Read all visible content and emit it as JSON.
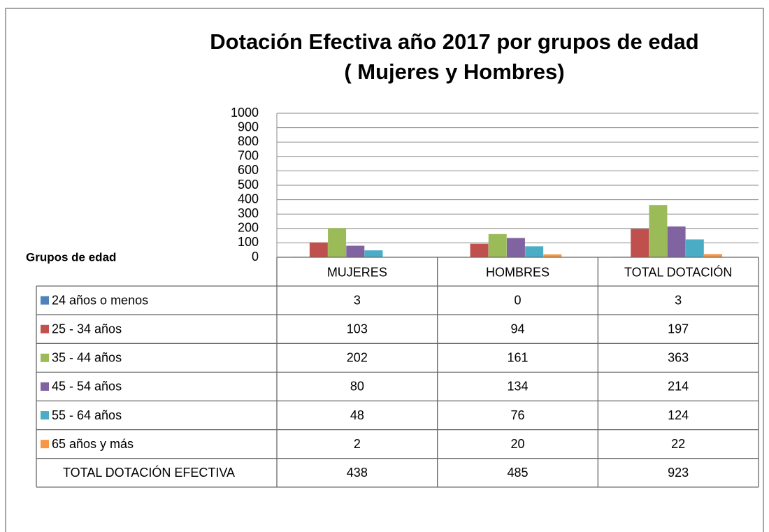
{
  "chart_data": {
    "type": "bar",
    "title": "Dotación Efectiva año 2017  por grupos de edad",
    "subtitle": "( Mujeres y Hombres)",
    "x_label": "Grupos de edad",
    "categories": [
      "MUJERES",
      "HOMBRES",
      "TOTAL DOTACIÓN"
    ],
    "series": [
      {
        "name": "24 años o menos",
        "color": "#4f81bd",
        "values": [
          3,
          0,
          3
        ]
      },
      {
        "name": "25 - 34 años",
        "color": "#c0504d",
        "values": [
          103,
          94,
          197
        ]
      },
      {
        "name": "35 - 44 años",
        "color": "#9bbb59",
        "values": [
          202,
          161,
          363
        ]
      },
      {
        "name": "45 - 54 años",
        "color": "#8064a2",
        "values": [
          80,
          134,
          214
        ]
      },
      {
        "name": "55 - 64 años",
        "color": "#4bacc6",
        "values": [
          48,
          76,
          124
        ]
      },
      {
        "name": "65 años y más",
        "color": "#f79646",
        "values": [
          2,
          20,
          22
        ]
      }
    ],
    "total_row": {
      "name": "TOTAL DOTACIÓN EFECTIVA",
      "values": [
        438,
        485,
        923
      ]
    },
    "ylim": [
      0,
      1000
    ],
    "yticks": [
      0,
      100,
      200,
      300,
      400,
      500,
      600,
      700,
      800,
      900,
      1000
    ],
    "grid": true
  }
}
